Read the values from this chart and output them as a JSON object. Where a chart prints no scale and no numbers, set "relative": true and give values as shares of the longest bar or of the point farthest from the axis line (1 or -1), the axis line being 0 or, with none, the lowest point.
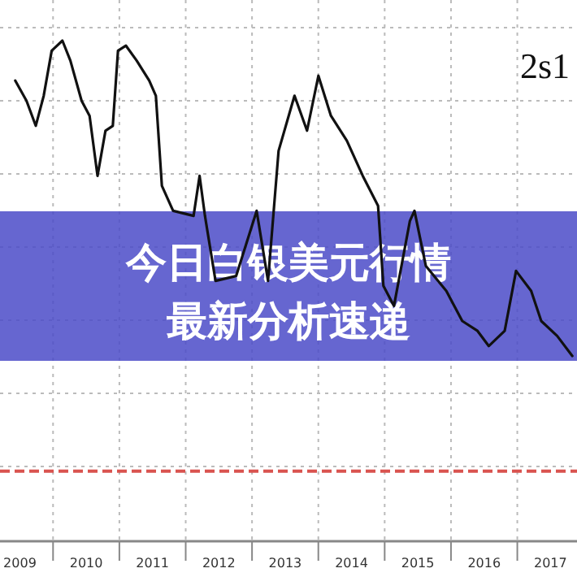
{
  "chart_data": {
    "type": "line",
    "relative": true,
    "title": "今日白银美元行情",
    "subtitle": "最新分析速递",
    "annotations": [
      "2s1"
    ],
    "xlim": [
      2009.2,
      2017.9
    ],
    "xticks": [
      {
        "value": 2009.5,
        "label": "2009"
      },
      {
        "value": 2010.5,
        "label": "2010"
      },
      {
        "value": 2011.5,
        "label": "2011"
      },
      {
        "value": 2012.5,
        "label": "2012"
      },
      {
        "value": 2013.5,
        "label": "2013"
      },
      {
        "value": 2014.5,
        "label": "2014"
      },
      {
        "value": 2015.5,
        "label": "2015"
      },
      {
        "value": 2016.5,
        "label": "2016"
      },
      {
        "value": 2017.5,
        "label": "2017"
      },
      {
        "value": 2010,
        "label": null
      },
      {
        "value": 2011,
        "label": null
      },
      {
        "value": 2012,
        "label": null
      },
      {
        "value": 2013,
        "label": null
      },
      {
        "value": 2014,
        "label": null
      },
      {
        "value": 2015,
        "label": null
      },
      {
        "value": 2016,
        "label": null
      },
      {
        "value": 2017,
        "label": null
      }
    ],
    "grid": true,
    "ref_lines": [
      {
        "axis": "y",
        "value": 0.14,
        "color": "#d9534f",
        "line_style": "dashed"
      }
    ],
    "series": [
      {
        "color": "#111111",
        "x": [
          2009.43,
          2009.6,
          2009.74,
          2009.86,
          2009.98,
          2010.14,
          2010.26,
          2010.43,
          2010.55,
          2010.67,
          2010.79,
          2010.9,
          2010.98,
          2011.1,
          2011.26,
          2011.45,
          2011.55,
          2011.64,
          2011.81,
          2012.12,
          2012.21,
          2012.29,
          2012.45,
          2012.76,
          2013.07,
          2013.24,
          2013.4,
          2013.64,
          2013.83,
          2014.0,
          2014.19,
          2014.43,
          2014.67,
          2014.9,
          2014.98,
          2015.14,
          2015.38,
          2015.45,
          2015.62,
          2015.93,
          2016.17,
          2016.4,
          2016.57,
          2016.81,
          2016.98,
          2017.21,
          2017.36,
          2017.6,
          2017.83
        ],
        "values": [
          0.92,
          0.88,
          0.83,
          0.89,
          0.98,
          1.0,
          0.96,
          0.88,
          0.85,
          0.73,
          0.82,
          0.83,
          0.98,
          0.99,
          0.96,
          0.92,
          0.89,
          0.71,
          0.66,
          0.65,
          0.73,
          0.65,
          0.52,
          0.53,
          0.66,
          0.52,
          0.78,
          0.89,
          0.82,
          0.93,
          0.85,
          0.8,
          0.73,
          0.67,
          0.51,
          0.47,
          0.64,
          0.66,
          0.55,
          0.5,
          0.44,
          0.42,
          0.39,
          0.42,
          0.54,
          0.5,
          0.44,
          0.41,
          0.37
        ]
      }
    ]
  }
}
